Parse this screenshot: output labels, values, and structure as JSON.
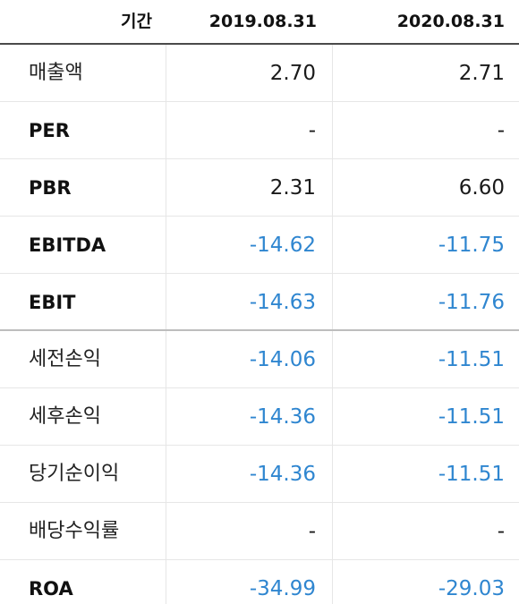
{
  "header": {
    "label": "기간",
    "col1": "2019.08.31",
    "col2": "2020.08.31"
  },
  "colors": {
    "negative": "#2f86d0",
    "default": "#1a1a1a"
  },
  "rows": [
    {
      "label": "매출액",
      "bold": false,
      "v1": "2.70",
      "v2": "2.71",
      "v1_neg": false,
      "v2_neg": false
    },
    {
      "label": "PER",
      "bold": true,
      "v1": "-",
      "v2": "-",
      "v1_neg": false,
      "v2_neg": false
    },
    {
      "label": "PBR",
      "bold": true,
      "v1": "2.31",
      "v2": "6.60",
      "v1_neg": false,
      "v2_neg": false
    },
    {
      "label": "EBITDA",
      "bold": true,
      "v1": "-14.62",
      "v2": "-11.75",
      "v1_neg": true,
      "v2_neg": true
    },
    {
      "label": "EBIT",
      "bold": true,
      "v1": "-14.63",
      "v2": "-11.76",
      "v1_neg": true,
      "v2_neg": true
    },
    {
      "label": "세전손익",
      "bold": false,
      "v1": "-14.06",
      "v2": "-11.51",
      "v1_neg": true,
      "v2_neg": true
    },
    {
      "label": "세후손익",
      "bold": false,
      "v1": "-14.36",
      "v2": "-11.51",
      "v1_neg": true,
      "v2_neg": true
    },
    {
      "label": "당기순이익",
      "bold": false,
      "v1": "-14.36",
      "v2": "-11.51",
      "v1_neg": true,
      "v2_neg": true
    },
    {
      "label": "배당수익률",
      "bold": false,
      "v1": "-",
      "v2": "-",
      "v1_neg": false,
      "v2_neg": false
    },
    {
      "label": "ROA",
      "bold": true,
      "v1": "-34.99",
      "v2": "-29.03",
      "v1_neg": true,
      "v2_neg": true
    }
  ]
}
